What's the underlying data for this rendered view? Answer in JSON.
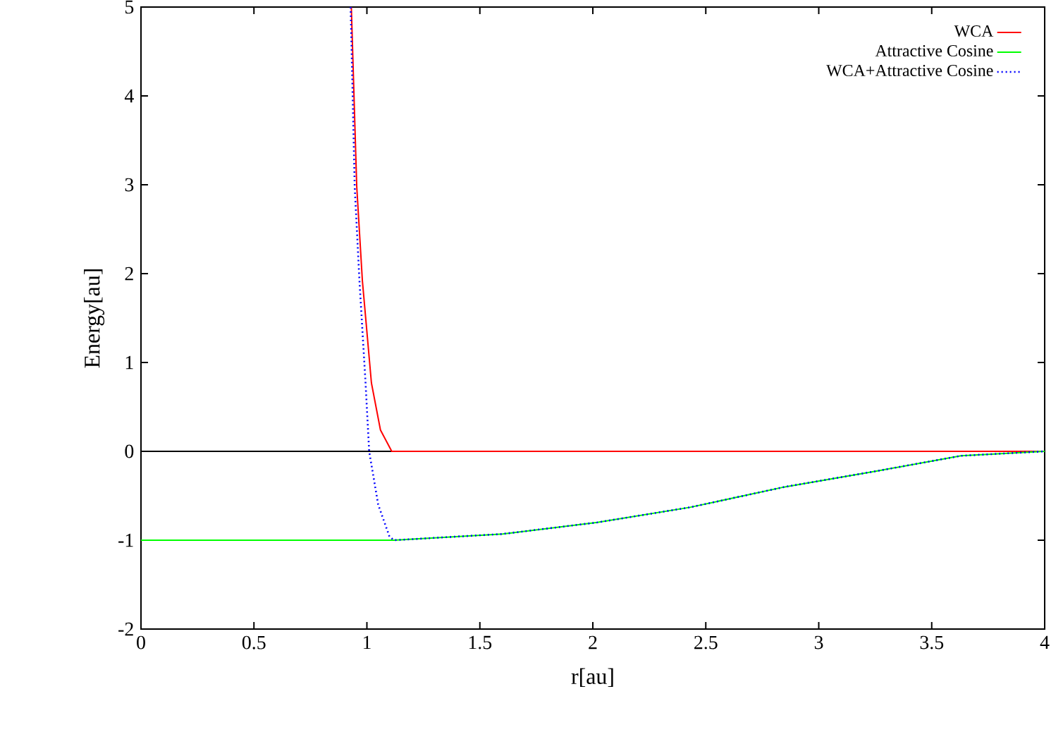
{
  "chart_data": {
    "type": "line",
    "xlabel": "r[au]",
    "ylabel": "Energy[au]",
    "xlim": [
      0,
      4
    ],
    "ylim": [
      -2,
      5
    ],
    "xticks": [
      0,
      0.5,
      1,
      1.5,
      2,
      2.5,
      3,
      3.5,
      4
    ],
    "yticks": [
      -2,
      -1,
      0,
      1,
      2,
      3,
      4,
      5
    ],
    "legend": "top right",
    "grid": false,
    "ref_lines": [
      {
        "axis": "y",
        "value": 0,
        "color": "#000000"
      }
    ],
    "series": [
      {
        "name": "WCA",
        "color": "#ff0000",
        "line_style": "solid",
        "x": [
          0.931,
          0.955,
          0.98,
          1.02,
          1.06,
          1.11,
          4
        ],
        "values": [
          5,
          2.98,
          1.92,
          0.77,
          0.24,
          0,
          0
        ]
      },
      {
        "name": "Attractive Cosine",
        "color": "#00ff00",
        "line_style": "solid",
        "x": [
          0,
          1.12,
          1.6,
          2.02,
          2.43,
          2.85,
          3.26,
          3.63,
          4
        ],
        "values": [
          -1,
          -1,
          -0.93,
          -0.8,
          -0.63,
          -0.4,
          -0.22,
          -0.05,
          0
        ]
      },
      {
        "name": "WCA+Attractive Cosine",
        "color": "#0000ff",
        "line_style": "dotted",
        "x": [
          0.928,
          0.946,
          0.967,
          0.994,
          1.01,
          1.05,
          1.1,
          1.12,
          1.6,
          2.02,
          2.43,
          2.85,
          3.26,
          3.63,
          4
        ],
        "values": [
          5,
          2.98,
          1.92,
          0.77,
          0,
          -0.6,
          -0.96,
          -1,
          -0.93,
          -0.8,
          -0.63,
          -0.4,
          -0.22,
          -0.05,
          0
        ]
      }
    ]
  }
}
